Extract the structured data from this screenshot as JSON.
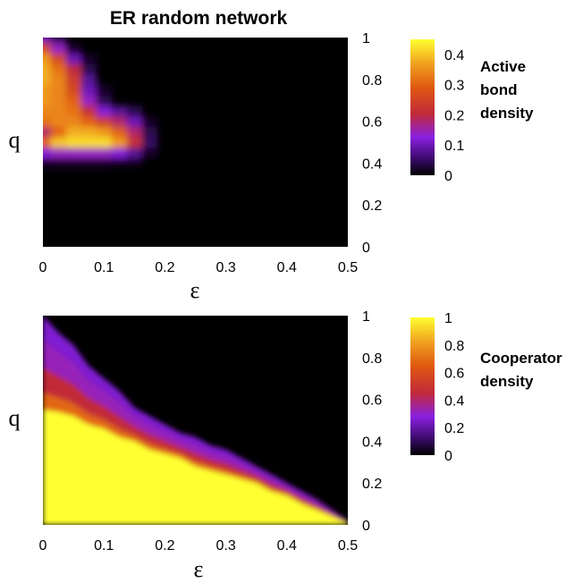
{
  "chart_data": [
    {
      "type": "heatmap",
      "title": "ER random network",
      "xlabel": "ε",
      "ylabel": "q",
      "xlim": [
        0,
        0.5
      ],
      "ylim": [
        0,
        1
      ],
      "xticks": [
        "0",
        "0.1",
        "0.2",
        "0.3",
        "0.4",
        "0.5"
      ],
      "yticks": [
        "0",
        "0.2",
        "0.4",
        "0.6",
        "0.8",
        "1"
      ],
      "colorbar": {
        "label_lines": [
          "Active",
          "bond",
          "density"
        ],
        "range": [
          0,
          0.45
        ],
        "ticks": [
          "0",
          "0.1",
          "0.2",
          "0.3",
          "0.4"
        ],
        "colormap": "black-purple-red-orange-yellow"
      },
      "grid": false,
      "x": [
        0.0,
        0.025,
        0.05,
        0.075,
        0.1,
        0.125,
        0.15,
        0.175,
        0.2,
        0.225,
        0.25,
        0.275,
        0.3,
        0.325,
        0.35,
        0.375,
        0.4,
        0.425,
        0.45,
        0.475,
        0.5
      ],
      "y": [
        0.0,
        0.05,
        0.1,
        0.15,
        0.2,
        0.25,
        0.3,
        0.35,
        0.4,
        0.45,
        0.5,
        0.55,
        0.6,
        0.65,
        0.7,
        0.75,
        0.8,
        0.85,
        0.9,
        0.95,
        1.0
      ],
      "z": [
        [
          0,
          0,
          0,
          0,
          0,
          0,
          0,
          0,
          0,
          0,
          0,
          0,
          0,
          0,
          0,
          0,
          0,
          0,
          0,
          0,
          0
        ],
        [
          0,
          0,
          0,
          0,
          0,
          0,
          0,
          0,
          0,
          0,
          0,
          0,
          0,
          0,
          0,
          0,
          0,
          0,
          0,
          0,
          0
        ],
        [
          0,
          0,
          0,
          0,
          0,
          0,
          0,
          0,
          0,
          0,
          0,
          0,
          0,
          0,
          0,
          0,
          0,
          0,
          0,
          0,
          0
        ],
        [
          0,
          0,
          0,
          0,
          0,
          0,
          0,
          0,
          0,
          0,
          0,
          0,
          0,
          0,
          0,
          0,
          0,
          0,
          0,
          0,
          0
        ],
        [
          0,
          0,
          0,
          0,
          0,
          0,
          0,
          0,
          0,
          0,
          0,
          0,
          0,
          0,
          0,
          0,
          0,
          0,
          0,
          0,
          0
        ],
        [
          0,
          0,
          0,
          0,
          0,
          0,
          0,
          0,
          0,
          0,
          0,
          0,
          0,
          0,
          0,
          0,
          0,
          0,
          0,
          0,
          0
        ],
        [
          0,
          0,
          0,
          0,
          0,
          0,
          0,
          0,
          0,
          0,
          0,
          0,
          0,
          0,
          0,
          0,
          0,
          0,
          0,
          0,
          0
        ],
        [
          0,
          0,
          0,
          0,
          0,
          0,
          0,
          0,
          0,
          0,
          0,
          0,
          0,
          0,
          0,
          0,
          0,
          0,
          0,
          0,
          0
        ],
        [
          0.02,
          0.02,
          0.02,
          0.02,
          0.02,
          0.01,
          0.01,
          0,
          0,
          0,
          0,
          0,
          0,
          0,
          0,
          0,
          0,
          0,
          0,
          0,
          0
        ],
        [
          0.12,
          0.14,
          0.14,
          0.14,
          0.14,
          0.12,
          0.08,
          0.02,
          0,
          0,
          0,
          0,
          0,
          0,
          0,
          0,
          0,
          0,
          0,
          0,
          0
        ],
        [
          0.3,
          0.4,
          0.42,
          0.42,
          0.42,
          0.36,
          0.22,
          0.05,
          0,
          0,
          0,
          0,
          0,
          0,
          0,
          0,
          0,
          0,
          0,
          0,
          0
        ],
        [
          0.18,
          0.3,
          0.38,
          0.38,
          0.36,
          0.3,
          0.18,
          0.04,
          0,
          0,
          0,
          0,
          0,
          0,
          0,
          0,
          0,
          0,
          0,
          0,
          0
        ],
        [
          0.32,
          0.34,
          0.34,
          0.3,
          0.24,
          0.18,
          0.1,
          0.02,
          0,
          0,
          0,
          0,
          0,
          0,
          0,
          0,
          0,
          0,
          0,
          0,
          0
        ],
        [
          0.34,
          0.34,
          0.32,
          0.22,
          0.12,
          0.08,
          0.04,
          0,
          0,
          0,
          0,
          0,
          0,
          0,
          0,
          0,
          0,
          0,
          0,
          0,
          0
        ],
        [
          0.36,
          0.34,
          0.3,
          0.14,
          0.04,
          0,
          0,
          0,
          0,
          0,
          0,
          0,
          0,
          0,
          0,
          0,
          0,
          0,
          0,
          0,
          0
        ],
        [
          0.36,
          0.34,
          0.26,
          0.1,
          0.02,
          0,
          0,
          0,
          0,
          0,
          0,
          0,
          0,
          0,
          0,
          0,
          0,
          0,
          0,
          0,
          0
        ],
        [
          0.38,
          0.34,
          0.24,
          0.08,
          0,
          0,
          0,
          0,
          0,
          0,
          0,
          0,
          0,
          0,
          0,
          0,
          0,
          0,
          0,
          0,
          0
        ],
        [
          0.38,
          0.32,
          0.2,
          0.04,
          0,
          0,
          0,
          0,
          0,
          0,
          0,
          0,
          0,
          0,
          0,
          0,
          0,
          0,
          0,
          0,
          0
        ],
        [
          0.36,
          0.26,
          0.1,
          0.02,
          0,
          0,
          0,
          0,
          0,
          0,
          0,
          0,
          0,
          0,
          0,
          0,
          0,
          0,
          0,
          0,
          0
        ],
        [
          0.26,
          0.14,
          0.02,
          0,
          0,
          0,
          0,
          0,
          0,
          0,
          0,
          0,
          0,
          0,
          0,
          0,
          0,
          0,
          0,
          0,
          0
        ],
        [
          0.1,
          0.04,
          0,
          0,
          0,
          0,
          0,
          0,
          0,
          0,
          0,
          0,
          0,
          0,
          0,
          0,
          0,
          0,
          0,
          0,
          0
        ]
      ]
    },
    {
      "type": "heatmap",
      "title": "",
      "xlabel": "ε",
      "ylabel": "q",
      "xlim": [
        0,
        0.5
      ],
      "ylim": [
        0,
        1
      ],
      "xticks": [
        "0",
        "0.1",
        "0.2",
        "0.3",
        "0.4",
        "0.5"
      ],
      "yticks": [
        "0",
        "0.2",
        "0.4",
        "0.6",
        "0.8",
        "1"
      ],
      "colorbar": {
        "label_lines": [
          "Cooperator",
          "density"
        ],
        "range": [
          0,
          1
        ],
        "ticks": [
          "0",
          "0.2",
          "0.4",
          "0.6",
          "0.8",
          "1"
        ],
        "colormap": "black-purple-red-orange-yellow"
      },
      "grid": false,
      "x": [
        0.0,
        0.025,
        0.05,
        0.075,
        0.1,
        0.125,
        0.15,
        0.175,
        0.2,
        0.225,
        0.25,
        0.275,
        0.3,
        0.325,
        0.35,
        0.375,
        0.4,
        0.425,
        0.45,
        0.475,
        0.5
      ],
      "y": [
        0.0,
        0.05,
        0.1,
        0.15,
        0.2,
        0.25,
        0.3,
        0.35,
        0.4,
        0.45,
        0.5,
        0.55,
        0.6,
        0.65,
        0.7,
        0.75,
        0.8,
        0.85,
        0.9,
        0.95,
        1.0
      ],
      "boundary_q": [
        0.55,
        0.54,
        0.52,
        0.48,
        0.46,
        0.42,
        0.4,
        0.36,
        0.34,
        0.32,
        0.28,
        0.26,
        0.24,
        0.22,
        0.2,
        0.16,
        0.14,
        0.1,
        0.07,
        0.04,
        0.01
      ],
      "purple_edge_q": [
        1.0,
        0.92,
        0.86,
        0.76,
        0.7,
        0.64,
        0.56,
        0.52,
        0.48,
        0.44,
        0.42,
        0.38,
        0.36,
        0.32,
        0.28,
        0.24,
        0.2,
        0.16,
        0.12,
        0.07,
        0.02
      ]
    }
  ]
}
